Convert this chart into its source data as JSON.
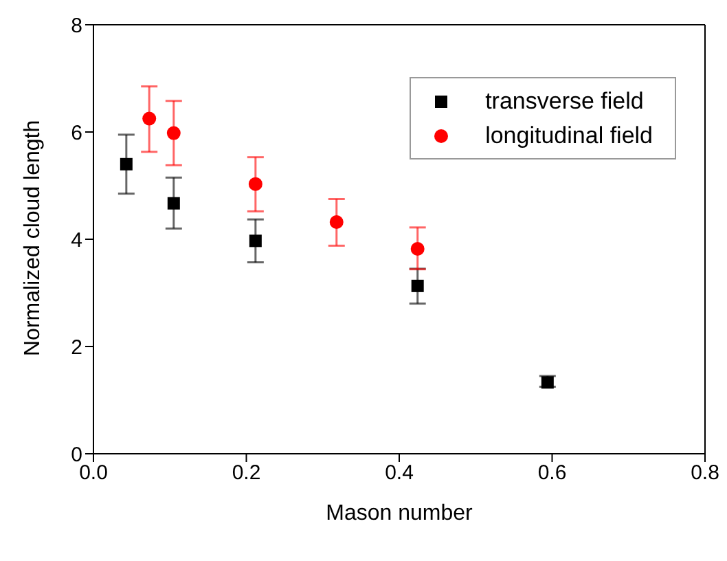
{
  "chart_data": {
    "type": "scatter",
    "xlabel": "Mason number",
    "ylabel": "Normalized cloud length",
    "xlim": [
      0,
      0.8
    ],
    "ylim": [
      0,
      8
    ],
    "xticks": [
      {
        "value": 0,
        "label": "0.0"
      },
      {
        "value": 0.2,
        "label": "0.2"
      },
      {
        "value": 0.4,
        "label": "0.4"
      },
      {
        "value": 0.6,
        "label": "0.6"
      },
      {
        "value": 0.8,
        "label": "0.8"
      }
    ],
    "yticks": [
      0,
      2,
      4,
      6,
      8
    ],
    "legend": "top right",
    "grid": false,
    "series": [
      {
        "name": "transverse field",
        "color": "#000000",
        "marker": "square",
        "x": [
          0.043,
          0.105,
          0.212,
          0.424,
          0.594
        ],
        "values": [
          5.4,
          4.67,
          3.97,
          3.13,
          1.33
        ],
        "errors": [
          [
            4.85,
            5.95
          ],
          [
            4.2,
            5.15
          ],
          [
            3.57,
            4.37
          ],
          [
            2.8,
            3.45
          ],
          [
            1.25,
            1.45
          ]
        ]
      },
      {
        "name": "longitudinal field",
        "color": "#ff0000",
        "marker": "circle",
        "x": [
          0.073,
          0.105,
          0.212,
          0.318,
          0.424
        ],
        "values": [
          6.25,
          5.98,
          5.03,
          4.32,
          3.82
        ],
        "errors": [
          [
            5.63,
            6.85
          ],
          [
            5.38,
            6.58
          ],
          [
            4.52,
            5.53
          ],
          [
            3.88,
            4.75
          ],
          [
            3.44,
            4.22
          ]
        ]
      }
    ]
  }
}
